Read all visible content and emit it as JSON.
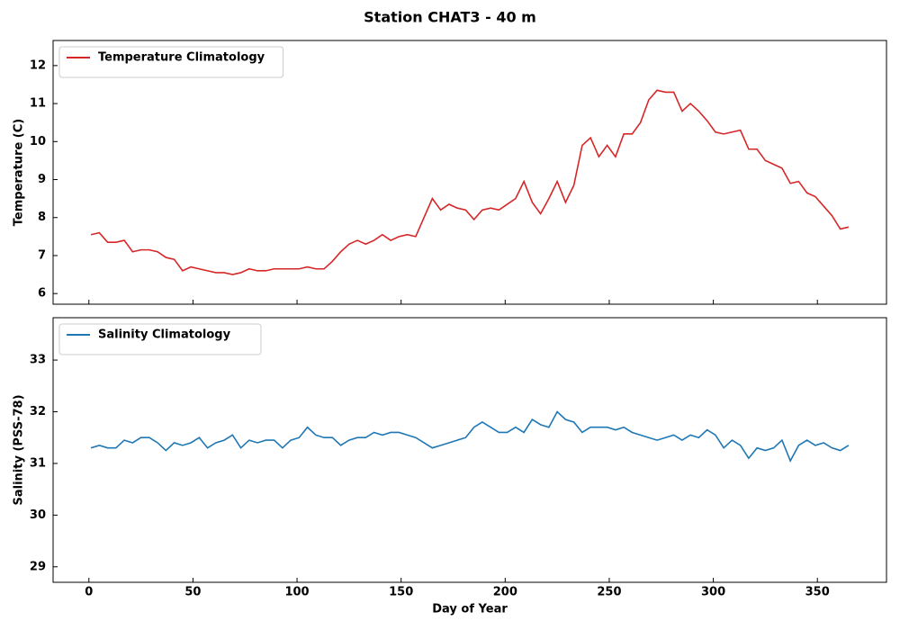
{
  "title": "Station CHAT3 - 40 m",
  "chart_data": [
    {
      "type": "line",
      "ylabel": "Temperature (C)",
      "legend": "upper left",
      "xlim": [
        -17.2,
        383.2
      ],
      "ylim": [
        5.72,
        12.66
      ],
      "yticks": [
        6,
        7,
        8,
        9,
        10,
        11,
        12
      ],
      "x": [
        1,
        5,
        9,
        13,
        17,
        21,
        25,
        29,
        33,
        37,
        41,
        45,
        49,
        53,
        57,
        61,
        65,
        69,
        73,
        77,
        81,
        85,
        89,
        93,
        97,
        101,
        105,
        109,
        113,
        117,
        121,
        125,
        129,
        133,
        137,
        141,
        145,
        149,
        153,
        157,
        161,
        165,
        169,
        173,
        177,
        181,
        185,
        189,
        193,
        197,
        201,
        205,
        209,
        213,
        217,
        221,
        225,
        229,
        233,
        237,
        241,
        245,
        249,
        253,
        257,
        261,
        265,
        269,
        273,
        277,
        281,
        285,
        289,
        293,
        297,
        301,
        305,
        309,
        313,
        317,
        321,
        325,
        329,
        333,
        337,
        341,
        345,
        349,
        353,
        357,
        361,
        365
      ],
      "series": [
        {
          "name": "Temperature Climatology",
          "color": "#d62728",
          "values": [
            7.55,
            7.6,
            7.35,
            7.35,
            7.4,
            7.1,
            7.15,
            7.15,
            7.1,
            6.95,
            6.9,
            6.6,
            6.7,
            6.65,
            6.6,
            6.55,
            6.55,
            6.5,
            6.55,
            6.65,
            6.6,
            6.6,
            6.65,
            6.65,
            6.65,
            6.65,
            6.7,
            6.65,
            6.65,
            6.85,
            7.1,
            7.3,
            7.4,
            7.3,
            7.4,
            7.55,
            7.4,
            7.5,
            7.55,
            7.5,
            8.0,
            8.5,
            8.2,
            8.35,
            8.25,
            8.2,
            7.95,
            8.2,
            8.25,
            8.2,
            8.35,
            8.5,
            8.95,
            8.4,
            8.1,
            8.5,
            8.95,
            8.4,
            8.85,
            9.9,
            10.1,
            9.6,
            9.9,
            9.6,
            10.2,
            10.2,
            10.5,
            11.1,
            11.35,
            11.3,
            11.3,
            10.8,
            11.0,
            10.8,
            10.55,
            10.25,
            10.2,
            10.25,
            10.3,
            9.8,
            9.8,
            9.5,
            9.4,
            9.3,
            8.9,
            8.95,
            8.65,
            8.55,
            8.3,
            8.05,
            7.7,
            7.75
          ]
        }
      ]
    },
    {
      "type": "line",
      "ylabel": "Salinity (PSS-78)",
      "xlabel": "Day of Year",
      "legend": "upper left",
      "xlim": [
        -17.2,
        383.2
      ],
      "ylim": [
        28.7,
        33.82
      ],
      "yticks": [
        29,
        30,
        31,
        32,
        33
      ],
      "xticks": [
        0,
        50,
        100,
        150,
        200,
        250,
        300,
        350
      ],
      "x": [
        1,
        5,
        9,
        13,
        17,
        21,
        25,
        29,
        33,
        37,
        41,
        45,
        49,
        53,
        57,
        61,
        65,
        69,
        73,
        77,
        81,
        85,
        89,
        93,
        97,
        101,
        105,
        109,
        113,
        117,
        121,
        125,
        129,
        133,
        137,
        141,
        145,
        149,
        153,
        157,
        161,
        165,
        169,
        173,
        177,
        181,
        185,
        189,
        193,
        197,
        201,
        205,
        209,
        213,
        217,
        221,
        225,
        229,
        233,
        237,
        241,
        245,
        249,
        253,
        257,
        261,
        265,
        269,
        273,
        277,
        281,
        285,
        289,
        293,
        297,
        301,
        305,
        309,
        313,
        317,
        321,
        325,
        329,
        333,
        337,
        341,
        345,
        349,
        353,
        357,
        361,
        365
      ],
      "series": [
        {
          "name": "Salinity Climatology",
          "color": "#1f77b4",
          "values": [
            31.3,
            31.35,
            31.3,
            31.3,
            31.45,
            31.4,
            31.5,
            31.5,
            31.4,
            31.25,
            31.4,
            31.35,
            31.4,
            31.5,
            31.3,
            31.4,
            31.45,
            31.55,
            31.3,
            31.45,
            31.4,
            31.45,
            31.45,
            31.3,
            31.45,
            31.5,
            31.7,
            31.55,
            31.5,
            31.5,
            31.35,
            31.45,
            31.5,
            31.5,
            31.6,
            31.55,
            31.6,
            31.6,
            31.55,
            31.5,
            31.4,
            31.3,
            31.35,
            31.4,
            31.45,
            31.5,
            31.7,
            31.8,
            31.7,
            31.6,
            31.6,
            31.7,
            31.6,
            31.85,
            31.75,
            31.7,
            32.0,
            31.85,
            31.8,
            31.6,
            31.7,
            31.7,
            31.7,
            31.65,
            31.7,
            31.6,
            31.55,
            31.5,
            31.45,
            31.5,
            31.55,
            31.45,
            31.55,
            31.5,
            31.65,
            31.55,
            31.3,
            31.45,
            31.35,
            31.1,
            31.3,
            31.25,
            31.3,
            31.45,
            31.05,
            31.35,
            31.45,
            31.35,
            31.4,
            31.3,
            31.25,
            31.35
          ]
        }
      ]
    }
  ]
}
